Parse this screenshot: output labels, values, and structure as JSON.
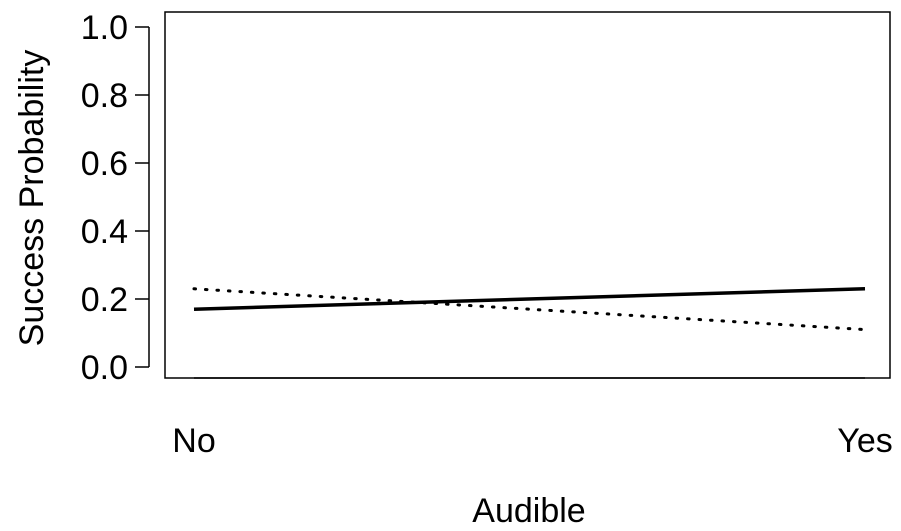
{
  "chart_data": {
    "type": "line",
    "title": "",
    "xlabel": "Audible",
    "ylabel": "Success Probability",
    "categories": [
      "No",
      "Yes"
    ],
    "ylim": [
      0.0,
      1.0
    ],
    "y_ticks": [
      "0.0",
      "0.2",
      "0.4",
      "0.6",
      "0.8",
      "1.0"
    ],
    "grid": false,
    "legend": "none",
    "series": [
      {
        "style": "solid",
        "color": "#000000",
        "values": [
          0.17,
          0.23
        ]
      },
      {
        "style": "dotted",
        "color": "#000000",
        "values": [
          0.23,
          0.11
        ]
      }
    ]
  }
}
